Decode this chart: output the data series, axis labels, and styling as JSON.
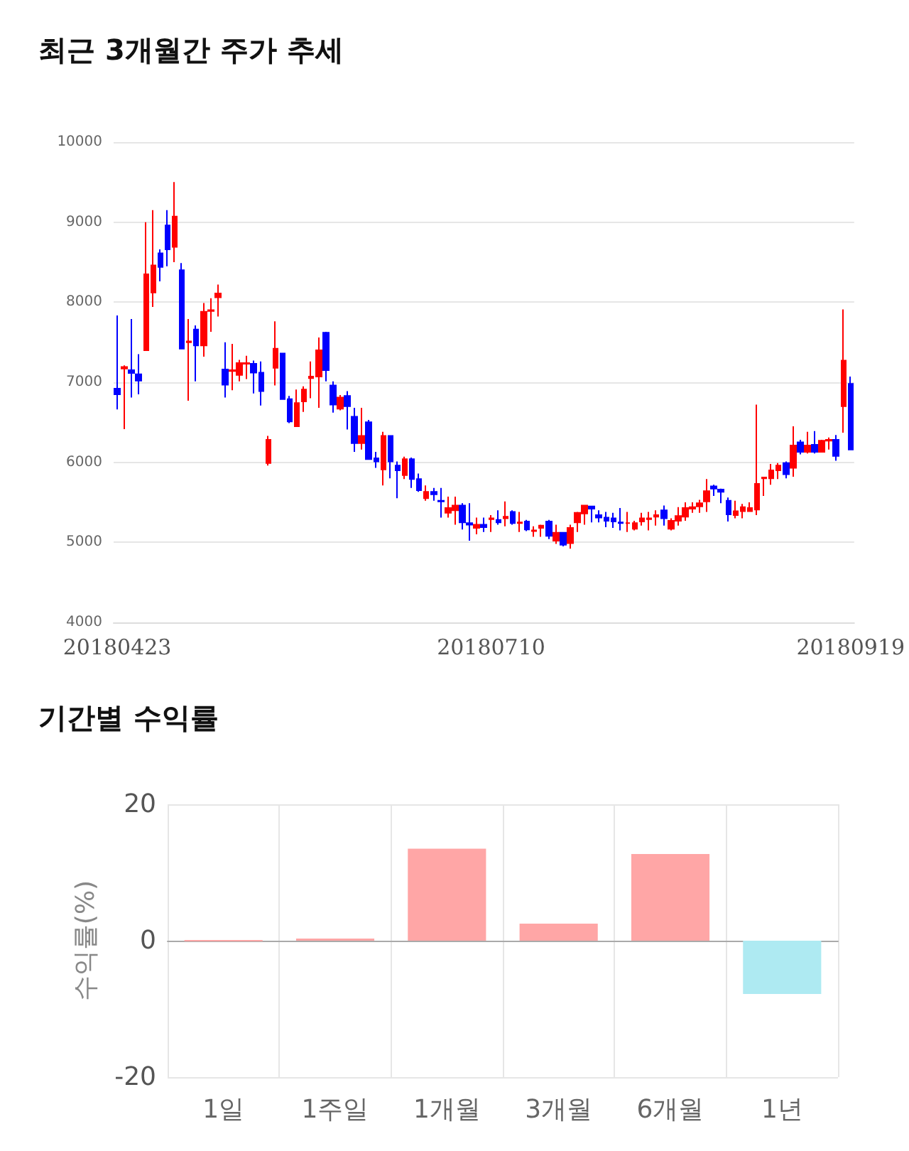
{
  "chart_data": [
    {
      "type": "candlestick",
      "title": "최근 3개월간 주가 추세",
      "categories": [
        "20180423",
        null,
        null,
        null,
        null,
        null,
        null,
        null,
        null,
        null,
        null,
        null,
        null,
        null,
        null,
        null,
        null,
        null,
        null,
        null,
        null,
        null,
        null,
        null,
        null,
        null,
        null,
        null,
        null,
        null,
        null,
        null,
        null,
        null,
        null,
        null,
        null,
        null,
        null,
        null,
        null,
        null,
        null,
        null,
        null,
        null,
        null,
        null,
        null,
        null,
        null,
        null,
        "20180710",
        null,
        null,
        null,
        null,
        null,
        null,
        null,
        null,
        null,
        null,
        null,
        null,
        null,
        null,
        null,
        null,
        null,
        null,
        null,
        null,
        null,
        null,
        null,
        null,
        null,
        null,
        null,
        null,
        null,
        null,
        null,
        null,
        null,
        null,
        null,
        null,
        null,
        null,
        null,
        null,
        null,
        null,
        null,
        null,
        null,
        null,
        null,
        null,
        null,
        "20180919"
      ],
      "ohlc": [
        [
          6920,
          7835,
          6660,
          6850
        ],
        [
          7170,
          7210,
          6415,
          7190
        ],
        [
          7150,
          7790,
          6810,
          7115
        ],
        [
          7100,
          7350,
          6850,
          7020
        ],
        [
          7400,
          9000,
          7400,
          8350
        ],
        [
          8120,
          9150,
          7940,
          8460
        ],
        [
          8610,
          8660,
          8260,
          8440
        ],
        [
          8960,
          9150,
          8450,
          8660
        ],
        [
          8690,
          9500,
          8500,
          9070
        ],
        [
          8400,
          8490,
          7420,
          7420
        ],
        [
          7500,
          7790,
          6770,
          7510
        ],
        [
          7660,
          7710,
          7010,
          7460
        ],
        [
          7460,
          7990,
          7320,
          7880
        ],
        [
          7890,
          8050,
          7630,
          7900
        ],
        [
          8060,
          8220,
          7820,
          8110
        ],
        [
          7160,
          7500,
          6810,
          6970
        ],
        [
          7140,
          7480,
          6900,
          7150
        ],
        [
          7090,
          7280,
          7010,
          7240
        ],
        [
          7230,
          7330,
          7040,
          7240
        ],
        [
          7230,
          7270,
          6860,
          7120
        ],
        [
          7120,
          7260,
          6710,
          6890
        ],
        [
          5990,
          6330,
          5960,
          6280
        ],
        [
          7180,
          7760,
          6960,
          7420
        ],
        [
          7360,
          7360,
          6790,
          6790
        ],
        [
          6790,
          6830,
          6490,
          6510
        ],
        [
          6450,
          6910,
          6450,
          6740
        ],
        [
          6760,
          6950,
          6630,
          6910
        ],
        [
          7050,
          7260,
          6800,
          7070
        ],
        [
          7070,
          7560,
          6680,
          7400
        ],
        [
          7620,
          7630,
          7010,
          7150
        ],
        [
          6960,
          7010,
          6620,
          6720
        ],
        [
          6670,
          6840,
          6650,
          6810
        ],
        [
          6830,
          6890,
          6410,
          6700
        ],
        [
          6570,
          6680,
          6130,
          6240
        ],
        [
          6240,
          6680,
          6160,
          6330
        ],
        [
          6500,
          6530,
          6030,
          6040
        ],
        [
          6050,
          6130,
          5930,
          6010
        ],
        [
          5910,
          6380,
          5710,
          6330
        ],
        [
          6330,
          6330,
          5800,
          6010
        ],
        [
          5960,
          6010,
          5550,
          5900
        ],
        [
          5840,
          6070,
          5790,
          6040
        ],
        [
          6040,
          6060,
          5680,
          5790
        ],
        [
          5790,
          5860,
          5630,
          5650
        ],
        [
          5550,
          5710,
          5520,
          5630
        ],
        [
          5630,
          5680,
          5520,
          5600
        ],
        [
          5520,
          5680,
          5310,
          5510
        ],
        [
          5370,
          5570,
          5310,
          5430
        ],
        [
          5400,
          5570,
          5220,
          5460
        ],
        [
          5460,
          5490,
          5160,
          5250
        ],
        [
          5240,
          5490,
          5020,
          5220
        ],
        [
          5180,
          5310,
          5100,
          5220
        ],
        [
          5220,
          5310,
          5130,
          5190
        ],
        [
          5290,
          5340,
          5130,
          5300
        ],
        [
          5280,
          5400,
          5220,
          5250
        ],
        [
          5300,
          5510,
          5200,
          5320
        ],
        [
          5380,
          5400,
          5220,
          5240
        ],
        [
          5240,
          5380,
          5130,
          5250
        ],
        [
          5260,
          5280,
          5140,
          5160
        ],
        [
          5140,
          5200,
          5070,
          5150
        ],
        [
          5180,
          5220,
          5070,
          5210
        ],
        [
          5260,
          5280,
          5040,
          5080
        ],
        [
          5020,
          5220,
          4980,
          5120
        ],
        [
          5120,
          5130,
          4950,
          4970
        ],
        [
          4990,
          5220,
          4920,
          5180
        ],
        [
          5250,
          5380,
          5130,
          5370
        ],
        [
          5360,
          5460,
          5220,
          5460
        ],
        [
          5450,
          5450,
          5250,
          5420
        ],
        [
          5340,
          5400,
          5250,
          5310
        ],
        [
          5310,
          5380,
          5190,
          5270
        ],
        [
          5300,
          5370,
          5180,
          5260
        ],
        [
          5250,
          5430,
          5150,
          5240
        ],
        [
          5240,
          5380,
          5130,
          5240
        ],
        [
          5170,
          5270,
          5150,
          5240
        ],
        [
          5260,
          5370,
          5210,
          5300
        ],
        [
          5290,
          5380,
          5150,
          5300
        ],
        [
          5320,
          5400,
          5210,
          5340
        ],
        [
          5400,
          5460,
          5210,
          5300
        ],
        [
          5170,
          5300,
          5150,
          5270
        ],
        [
          5270,
          5440,
          5210,
          5330
        ],
        [
          5320,
          5500,
          5270,
          5430
        ],
        [
          5420,
          5500,
          5370,
          5440
        ],
        [
          5450,
          5530,
          5370,
          5490
        ],
        [
          5510,
          5790,
          5380,
          5640
        ],
        [
          5700,
          5720,
          5580,
          5670
        ],
        [
          5660,
          5670,
          5490,
          5630
        ],
        [
          5520,
          5560,
          5260,
          5350
        ],
        [
          5340,
          5520,
          5300,
          5390
        ],
        [
          5390,
          5480,
          5300,
          5440
        ],
        [
          5390,
          5500,
          5380,
          5430
        ],
        [
          5410,
          6720,
          5340,
          5730
        ],
        [
          5800,
          5820,
          5580,
          5810
        ],
        [
          5800,
          5980,
          5720,
          5900
        ],
        [
          5900,
          5990,
          5790,
          5960
        ],
        [
          5990,
          6010,
          5800,
          5850
        ],
        [
          5930,
          6450,
          5820,
          6210
        ],
        [
          6250,
          6280,
          6100,
          6130
        ],
        [
          6130,
          6380,
          6110,
          6210
        ],
        [
          6220,
          6390,
          6110,
          6130
        ],
        [
          6130,
          6280,
          6130,
          6270
        ],
        [
          6270,
          6310,
          6160,
          6280
        ],
        [
          6280,
          6340,
          6020,
          6080
        ],
        [
          6700,
          7910,
          6370,
          7270
        ],
        [
          6980,
          7070,
          6160,
          6160
        ]
      ],
      "ylim": [
        4000,
        10000
      ],
      "yticks": [
        4000,
        5000,
        6000,
        7000,
        8000,
        9000,
        10000
      ],
      "grid": "y"
    },
    {
      "type": "bar",
      "title": "기간별 수익률",
      "ylabel": "수익률(%)",
      "categories": [
        "1일",
        "1주일",
        "1개월",
        "3개월",
        "6개월",
        "1년"
      ],
      "values": [
        0,
        0.3,
        13.5,
        2.5,
        12.7,
        -7.8
      ],
      "colors": [
        "#ffa6a6",
        "#ffa6a6",
        "#ffa6a6",
        "#ffa6a6",
        "#ffa6a6",
        "#aeeaf2"
      ],
      "ylim": [
        -20,
        20
      ],
      "yticks": [
        -20,
        0,
        20
      ],
      "grid": true
    }
  ]
}
